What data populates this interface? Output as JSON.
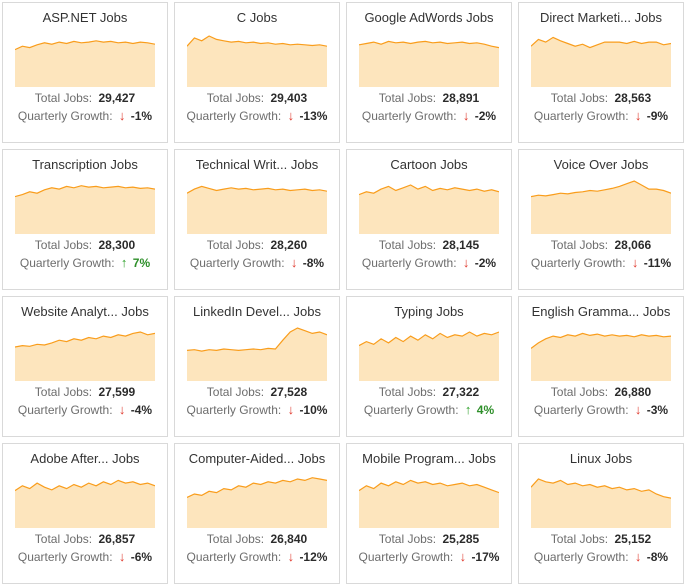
{
  "labels": {
    "total_jobs": "Total Jobs:",
    "quarterly_growth": "Quarterly Growth:"
  },
  "colors": {
    "chart_stroke": "#f99d1c",
    "chart_fill": "#fde5bd",
    "up_arrow": "#2fa12b",
    "down_arrow": "#e0392e",
    "up_text": "#2e8f2a",
    "negative_text": "#2b2b2b"
  },
  "chart_data": [
    {
      "type": "area",
      "title": "ASP.NET Jobs",
      "total_jobs": "29,427",
      "quarterly_growth": "-1%",
      "direction": "down",
      "values": [
        55,
        60,
        58,
        62,
        65,
        63,
        66,
        64,
        67,
        65,
        66,
        68,
        66,
        67,
        65,
        66,
        64,
        66,
        65,
        63
      ]
    },
    {
      "type": "area",
      "title": "C Jobs",
      "total_jobs": "29,403",
      "quarterly_growth": "-13%",
      "direction": "down",
      "values": [
        60,
        72,
        68,
        75,
        70,
        68,
        66,
        67,
        65,
        66,
        64,
        65,
        63,
        64,
        62,
        63,
        62,
        61,
        62,
        60
      ]
    },
    {
      "type": "area",
      "title": "Google AdWords Jobs",
      "total_jobs": "28,891",
      "quarterly_growth": "-2%",
      "direction": "down",
      "values": [
        62,
        64,
        66,
        63,
        67,
        65,
        66,
        64,
        66,
        67,
        65,
        66,
        64,
        65,
        66,
        64,
        65,
        63,
        60,
        58
      ]
    },
    {
      "type": "area",
      "title": "Direct Marketi... Jobs",
      "total_jobs": "28,563",
      "quarterly_growth": "-9%",
      "direction": "down",
      "values": [
        60,
        70,
        66,
        73,
        68,
        64,
        60,
        63,
        58,
        62,
        66,
        66,
        66,
        64,
        67,
        64,
        66,
        66,
        62,
        64
      ]
    },
    {
      "type": "area",
      "title": "Transcription Jobs",
      "total_jobs": "28,300",
      "quarterly_growth": "7%",
      "direction": "up",
      "values": [
        55,
        58,
        62,
        60,
        65,
        68,
        66,
        70,
        68,
        71,
        69,
        70,
        68,
        69,
        70,
        68,
        69,
        67,
        68,
        66
      ]
    },
    {
      "type": "area",
      "title": "Technical Writ... Jobs",
      "total_jobs": "28,260",
      "quarterly_growth": "-8%",
      "direction": "down",
      "values": [
        60,
        66,
        70,
        67,
        64,
        66,
        68,
        66,
        67,
        65,
        66,
        67,
        65,
        66,
        64,
        65,
        66,
        64,
        65,
        63
      ]
    },
    {
      "type": "area",
      "title": "Cartoon Jobs",
      "total_jobs": "28,145",
      "quarterly_growth": "-2%",
      "direction": "down",
      "values": [
        58,
        62,
        60,
        66,
        70,
        64,
        68,
        72,
        66,
        70,
        64,
        67,
        65,
        68,
        66,
        64,
        66,
        63,
        65,
        62
      ]
    },
    {
      "type": "area",
      "title": "Voice Over Jobs",
      "total_jobs": "28,066",
      "quarterly_growth": "-11%",
      "direction": "down",
      "values": [
        55,
        57,
        56,
        58,
        60,
        59,
        61,
        62,
        64,
        63,
        65,
        67,
        70,
        74,
        78,
        72,
        66,
        66,
        64,
        60
      ]
    },
    {
      "type": "area",
      "title": "Website Analyt... Jobs",
      "total_jobs": "27,599",
      "quarterly_growth": "-4%",
      "direction": "down",
      "values": [
        50,
        52,
        51,
        54,
        53,
        56,
        60,
        58,
        62,
        60,
        64,
        62,
        66,
        64,
        68,
        66,
        70,
        72,
        68,
        70
      ]
    },
    {
      "type": "area",
      "title": "LinkedIn Devel... Jobs",
      "total_jobs": "27,528",
      "quarterly_growth": "-10%",
      "direction": "down",
      "values": [
        45,
        46,
        44,
        46,
        45,
        47,
        46,
        45,
        46,
        47,
        46,
        48,
        47,
        60,
        72,
        78,
        74,
        70,
        72,
        68
      ]
    },
    {
      "type": "area",
      "title": "Typing Jobs",
      "total_jobs": "27,322",
      "quarterly_growth": "4%",
      "direction": "up",
      "values": [
        52,
        58,
        54,
        62,
        56,
        64,
        58,
        66,
        60,
        68,
        62,
        70,
        64,
        68,
        66,
        72,
        66,
        70,
        68,
        72
      ]
    },
    {
      "type": "area",
      "title": "English Gramma... Jobs",
      "total_jobs": "26,880",
      "quarterly_growth": "-3%",
      "direction": "down",
      "values": [
        48,
        56,
        62,
        66,
        64,
        68,
        66,
        70,
        67,
        69,
        66,
        68,
        66,
        67,
        65,
        68,
        66,
        67,
        65,
        66
      ]
    },
    {
      "type": "area",
      "title": "Adobe After... Jobs",
      "total_jobs": "26,857",
      "quarterly_growth": "-6%",
      "direction": "down",
      "values": [
        55,
        62,
        58,
        66,
        60,
        56,
        62,
        58,
        64,
        60,
        66,
        62,
        68,
        64,
        70,
        66,
        68,
        64,
        66,
        62
      ]
    },
    {
      "type": "area",
      "title": "Computer-Aided... Jobs",
      "total_jobs": "26,840",
      "quarterly_growth": "-12%",
      "direction": "down",
      "values": [
        45,
        50,
        48,
        54,
        52,
        58,
        56,
        62,
        60,
        66,
        64,
        68,
        66,
        70,
        68,
        72,
        70,
        74,
        72,
        70
      ]
    },
    {
      "type": "area",
      "title": "Mobile Program... Jobs",
      "total_jobs": "25,285",
      "quarterly_growth": "-17%",
      "direction": "down",
      "values": [
        55,
        62,
        58,
        66,
        62,
        68,
        64,
        70,
        66,
        68,
        64,
        66,
        62,
        64,
        66,
        62,
        64,
        60,
        56,
        52
      ]
    },
    {
      "type": "area",
      "title": "Linux Jobs",
      "total_jobs": "25,152",
      "quarterly_growth": "-8%",
      "direction": "down",
      "values": [
        60,
        72,
        68,
        66,
        70,
        64,
        66,
        62,
        64,
        60,
        62,
        58,
        60,
        56,
        58,
        54,
        56,
        50,
        46,
        44
      ]
    }
  ]
}
